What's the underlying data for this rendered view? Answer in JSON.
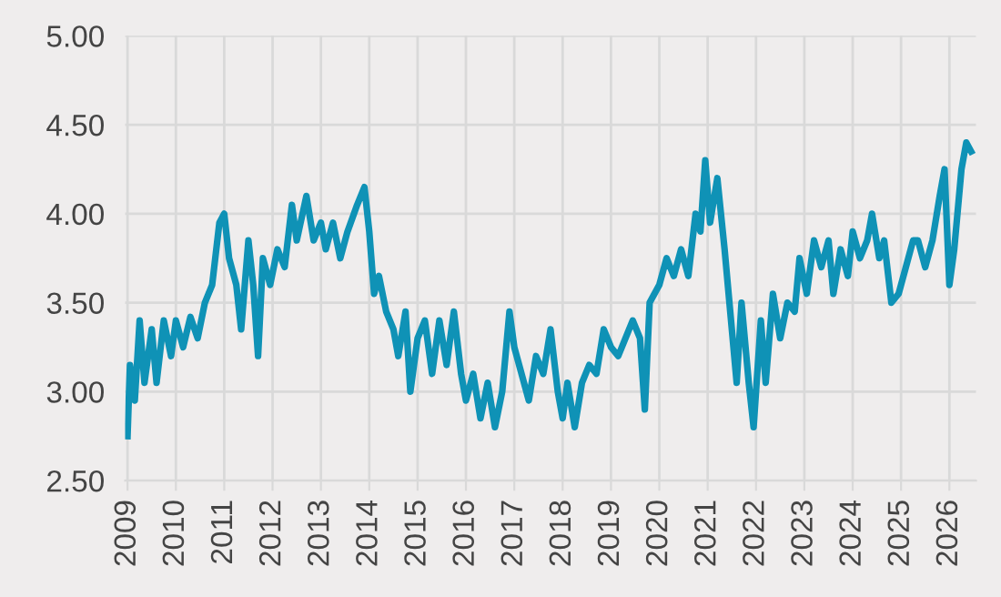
{
  "chart_data": {
    "type": "line",
    "xlim": [
      2008.95,
      2026.55
    ],
    "xticks": [
      2009,
      2010,
      2011,
      2012,
      2013,
      2014,
      2015,
      2016,
      2017,
      2018,
      2019,
      2020,
      2021,
      2022,
      2023,
      2024,
      2025,
      2026
    ],
    "ylim": [
      2.5,
      5.0
    ],
    "yticks": [
      {
        "value": 2.5,
        "label": "2.50"
      },
      {
        "value": 3.0,
        "label": "3.00"
      },
      {
        "value": 3.5,
        "label": "3.50"
      },
      {
        "value": 4.0,
        "label": "4.00"
      },
      {
        "value": 4.5,
        "label": "4.50"
      },
      {
        "value": 5.0,
        "label": "5.00"
      }
    ],
    "grid": true,
    "marker": "none",
    "line_style": "solid",
    "series": [
      {
        "color": "#0f92b6",
        "x": [
          2009.0,
          2009.05,
          2009.15,
          2009.25,
          2009.35,
          2009.5,
          2009.6,
          2009.75,
          2009.9,
          2010.0,
          2010.15,
          2010.3,
          2010.45,
          2010.6,
          2010.75,
          2010.9,
          2011.0,
          2011.1,
          2011.25,
          2011.35,
          2011.5,
          2011.6,
          2011.7,
          2011.8,
          2011.95,
          2012.1,
          2012.25,
          2012.4,
          2012.5,
          2012.7,
          2012.85,
          2013.0,
          2013.1,
          2013.25,
          2013.4,
          2013.55,
          2013.75,
          2013.9,
          2014.0,
          2014.1,
          2014.2,
          2014.35,
          2014.5,
          2014.6,
          2014.75,
          2014.85,
          2015.0,
          2015.15,
          2015.3,
          2015.45,
          2015.6,
          2015.75,
          2015.9,
          2016.0,
          2016.15,
          2016.3,
          2016.45,
          2016.6,
          2016.75,
          2016.9,
          2017.0,
          2017.15,
          2017.3,
          2017.45,
          2017.6,
          2017.75,
          2017.9,
          2018.0,
          2018.1,
          2018.25,
          2018.4,
          2018.55,
          2018.7,
          2018.85,
          2019.0,
          2019.15,
          2019.3,
          2019.45,
          2019.6,
          2019.7,
          2019.8,
          2020.0,
          2020.15,
          2020.3,
          2020.45,
          2020.6,
          2020.75,
          2020.85,
          2020.95,
          2021.05,
          2021.2,
          2021.35,
          2021.45,
          2021.6,
          2021.7,
          2021.85,
          2021.95,
          2022.1,
          2022.2,
          2022.35,
          2022.5,
          2022.65,
          2022.8,
          2022.9,
          2023.05,
          2023.2,
          2023.35,
          2023.5,
          2023.6,
          2023.75,
          2023.9,
          2024.0,
          2024.15,
          2024.3,
          2024.4,
          2024.55,
          2024.65,
          2024.8,
          2024.95,
          2025.1,
          2025.25,
          2025.35,
          2025.5,
          2025.65,
          2025.8,
          2025.9,
          2026.0,
          2026.1,
          2026.25,
          2026.35,
          2026.45
        ],
        "values": [
          2.75,
          3.15,
          2.95,
          3.4,
          3.05,
          3.35,
          3.05,
          3.4,
          3.2,
          3.4,
          3.25,
          3.42,
          3.3,
          3.5,
          3.6,
          3.95,
          4.0,
          3.75,
          3.6,
          3.35,
          3.85,
          3.6,
          3.2,
          3.75,
          3.6,
          3.8,
          3.7,
          4.05,
          3.85,
          4.1,
          3.85,
          3.95,
          3.8,
          3.95,
          3.75,
          3.9,
          4.05,
          4.15,
          3.9,
          3.55,
          3.65,
          3.45,
          3.35,
          3.2,
          3.45,
          3.0,
          3.3,
          3.4,
          3.1,
          3.4,
          3.15,
          3.45,
          3.1,
          2.95,
          3.1,
          2.85,
          3.05,
          2.8,
          3.0,
          3.45,
          3.25,
          3.1,
          2.95,
          3.2,
          3.1,
          3.35,
          3.0,
          2.85,
          3.05,
          2.8,
          3.05,
          3.15,
          3.1,
          3.35,
          3.25,
          3.2,
          3.3,
          3.4,
          3.3,
          2.9,
          3.5,
          3.6,
          3.75,
          3.65,
          3.8,
          3.65,
          4.0,
          3.9,
          4.3,
          3.95,
          4.2,
          3.8,
          3.5,
          3.05,
          3.5,
          3.05,
          2.8,
          3.4,
          3.05,
          3.55,
          3.3,
          3.5,
          3.45,
          3.75,
          3.55,
          3.85,
          3.7,
          3.85,
          3.55,
          3.8,
          3.65,
          3.9,
          3.75,
          3.85,
          4.0,
          3.75,
          3.85,
          3.5,
          3.55,
          3.7,
          3.85,
          3.85,
          3.7,
          3.85,
          4.1,
          4.25,
          3.6,
          3.8,
          4.25,
          4.4,
          4.35
        ]
      }
    ]
  }
}
